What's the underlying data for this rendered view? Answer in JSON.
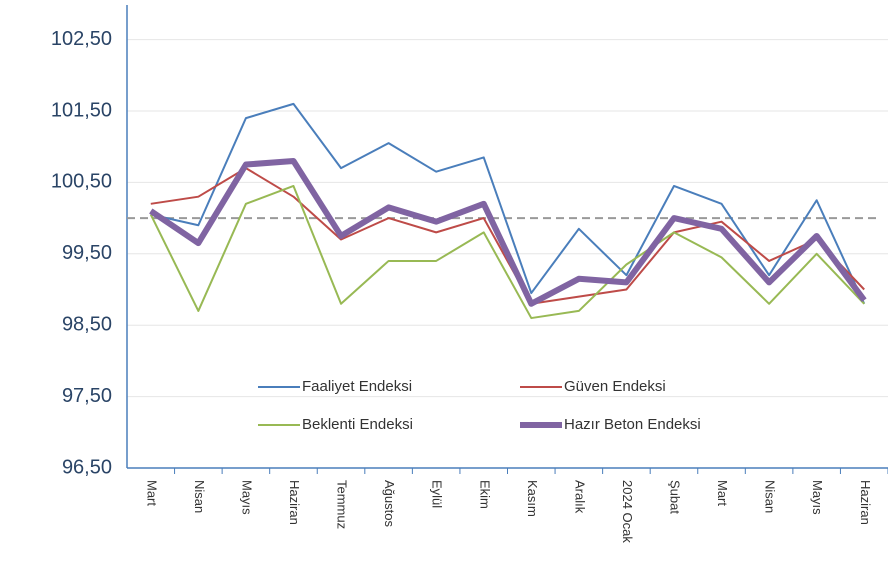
{
  "chart_data": {
    "type": "line",
    "categories": [
      "Mart",
      "Nisan",
      "Mayıs",
      "Haziran",
      "Temmuz",
      "Ağustos",
      "Eylül",
      "Ekim",
      "Kasım",
      "Aralık",
      "2024 Ocak",
      "Şubat",
      "Mart",
      "Nisan",
      "Mayıs",
      "Haziran"
    ],
    "series": [
      {
        "name": "Faaliyet Endeksi",
        "color": "#4a7ebb",
        "values": [
          100.05,
          99.9,
          101.4,
          101.6,
          100.7,
          101.05,
          100.65,
          100.85,
          98.95,
          99.85,
          99.2,
          100.45,
          100.2,
          99.2,
          100.25,
          98.8
        ]
      },
      {
        "name": "Güven Endeksi",
        "color": "#be4b48",
        "values": [
          100.2,
          100.3,
          100.7,
          100.3,
          99.7,
          100.0,
          99.8,
          100.0,
          98.8,
          98.9,
          99.0,
          99.8,
          99.95,
          99.4,
          99.7,
          99.0
        ]
      },
      {
        "name": "Beklenti Endeksi",
        "color": "#98b954",
        "values": [
          100.05,
          98.7,
          100.2,
          100.45,
          98.8,
          99.4,
          99.4,
          99.8,
          98.6,
          98.7,
          99.35,
          99.8,
          99.45,
          98.8,
          99.5,
          98.8
        ]
      },
      {
        "name": "Hazır Beton Endeksi",
        "color": "#8064a2",
        "values": [
          100.1,
          99.65,
          100.75,
          100.8,
          99.75,
          100.15,
          99.95,
          100.2,
          98.8,
          99.15,
          99.1,
          100.0,
          99.85,
          99.1,
          99.75,
          98.85
        ]
      }
    ],
    "ylim": [
      96.5,
      103
    ],
    "yticks": [
      {
        "value": 96.5,
        "label": "96,50"
      },
      {
        "value": 97.5,
        "label": "97,50"
      },
      {
        "value": 98.5,
        "label": "98,50"
      },
      {
        "value": 99.5,
        "label": "99,50"
      },
      {
        "value": 100.5,
        "label": "100,50"
      },
      {
        "value": 101.5,
        "label": "101,50"
      },
      {
        "value": 102.5,
        "label": "102,50"
      }
    ],
    "reference_line": 100,
    "grid": true
  }
}
